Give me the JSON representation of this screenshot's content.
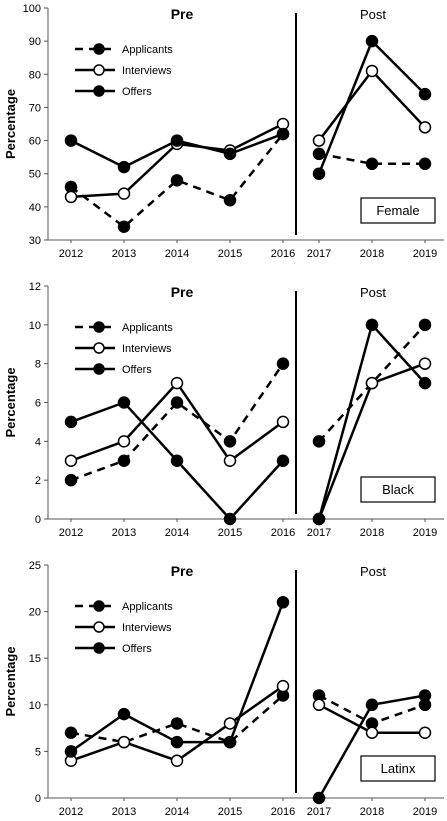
{
  "chart_data": [
    {
      "type": "line",
      "group_label": "Female",
      "ylabel": "Percentage",
      "ylim": [
        30,
        100
      ],
      "yticks": [
        30,
        40,
        50,
        60,
        70,
        80,
        90,
        100
      ],
      "periods": [
        {
          "label": "Pre",
          "x": [
            "2012",
            "2013",
            "2014",
            "2015",
            "2016"
          ]
        },
        {
          "label": "Post",
          "x": [
            "2017",
            "2018",
            "2019"
          ]
        }
      ],
      "legend": [
        {
          "name": "Applicants",
          "style": "dashed",
          "marker": "filled"
        },
        {
          "name": "Interviews",
          "style": "solid",
          "marker": "open"
        },
        {
          "name": "Offers",
          "style": "solid",
          "marker": "filled"
        }
      ],
      "series": [
        {
          "name": "Applicants",
          "pre": [
            46,
            34,
            48,
            42,
            62
          ],
          "post": [
            56,
            53,
            53
          ]
        },
        {
          "name": "Interviews",
          "pre": [
            43,
            44,
            59,
            57,
            65
          ],
          "post": [
            60,
            81,
            64
          ]
        },
        {
          "name": "Offers",
          "pre": [
            60,
            52,
            60,
            56,
            62
          ],
          "post": [
            50,
            90,
            74
          ]
        }
      ]
    },
    {
      "type": "line",
      "group_label": "Black",
      "ylabel": "Percentage",
      "ylim": [
        0,
        12
      ],
      "yticks": [
        0,
        2,
        4,
        6,
        8,
        10,
        12
      ],
      "periods": [
        {
          "label": "Pre",
          "x": [
            "2012",
            "2013",
            "2014",
            "2015",
            "2016"
          ]
        },
        {
          "label": "Post",
          "x": [
            "2017",
            "2018",
            "2019"
          ]
        }
      ],
      "legend": [
        {
          "name": "Applicants",
          "style": "dashed",
          "marker": "filled"
        },
        {
          "name": "Interviews",
          "style": "solid",
          "marker": "open"
        },
        {
          "name": "Offers",
          "style": "solid",
          "marker": "filled"
        }
      ],
      "series": [
        {
          "name": "Applicants",
          "pre": [
            2,
            3,
            6,
            4,
            8
          ],
          "post": [
            4,
            7,
            10
          ]
        },
        {
          "name": "Interviews",
          "pre": [
            3,
            4,
            7,
            3,
            5
          ],
          "post": [
            0,
            7,
            8
          ]
        },
        {
          "name": "Offers",
          "pre": [
            5,
            6,
            3,
            0,
            3
          ],
          "post": [
            0,
            10,
            7
          ]
        }
      ]
    },
    {
      "type": "line",
      "group_label": "Latinx",
      "ylabel": "Percentage",
      "ylim": [
        0,
        25
      ],
      "yticks": [
        0,
        5,
        10,
        15,
        20,
        25
      ],
      "periods": [
        {
          "label": "Pre",
          "x": [
            "2012",
            "2013",
            "2014",
            "2015",
            "2016"
          ]
        },
        {
          "label": "Post",
          "x": [
            "2017",
            "2018",
            "2019"
          ]
        }
      ],
      "legend": [
        {
          "name": "Applicants",
          "style": "dashed",
          "marker": "filled"
        },
        {
          "name": "Interviews",
          "style": "solid",
          "marker": "open"
        },
        {
          "name": "Offers",
          "style": "solid",
          "marker": "filled"
        }
      ],
      "series": [
        {
          "name": "Applicants",
          "pre": [
            7,
            6,
            8,
            6,
            11
          ],
          "post": [
            11,
            8,
            10
          ]
        },
        {
          "name": "Interviews",
          "pre": [
            4,
            6,
            4,
            8,
            12
          ],
          "post": [
            10,
            7,
            7
          ]
        },
        {
          "name": "Offers",
          "pre": [
            5,
            9,
            6,
            6,
            21
          ],
          "post": [
            0,
            10,
            11
          ]
        }
      ]
    }
  ]
}
